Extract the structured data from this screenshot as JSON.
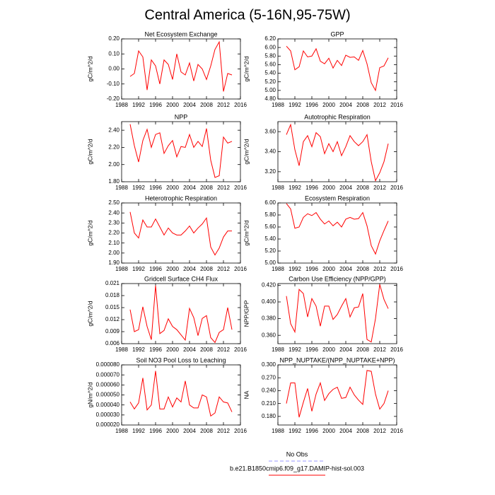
{
  "title": "Central America (5-16N,95-75W)",
  "legend": [
    {
      "name": "No Obs",
      "color": "#9999ff",
      "dash": true
    },
    {
      "name": "b.e21.B1850cmip6.f09_g17.DAMIP-hist-sol.003",
      "color": "#ff0000",
      "dash": false
    }
  ],
  "chart_data": [
    {
      "type": "line",
      "title": "Net Ecosystem Exchange",
      "ylabel": "gC/m^2/d",
      "color": "#ff0000",
      "x": [
        1990,
        1991,
        1992,
        1993,
        1994,
        1995,
        1996,
        1997,
        1998,
        1999,
        2000,
        2001,
        2002,
        2003,
        2004,
        2005,
        2006,
        2007,
        2008,
        2009,
        2010,
        2011,
        2012,
        2013,
        2014
      ],
      "values": [
        -0.05,
        -0.03,
        0.12,
        0.08,
        -0.14,
        0.06,
        0.02,
        -0.1,
        0.06,
        0.03,
        -0.07,
        0.1,
        -0.02,
        -0.04,
        0.04,
        -0.08,
        0.03,
        0.0,
        -0.07,
        0.02,
        0.13,
        0.18,
        -0.15,
        -0.03,
        -0.04
      ],
      "xlim": [
        1988,
        2016
      ],
      "xticks": [
        1988,
        1992,
        1996,
        2000,
        2004,
        2008,
        2012,
        2016
      ],
      "ylim": [
        -0.2,
        0.2
      ],
      "yticks": [
        {
          "value": -0.2,
          "label": "-0.20"
        },
        {
          "value": -0.1,
          "label": "-0.10"
        },
        {
          "value": 0,
          "label": "0.00"
        },
        {
          "value": 0.1,
          "label": "0.10"
        },
        {
          "value": 0.2,
          "label": "0.20"
        }
      ]
    },
    {
      "type": "line",
      "title": "GPP",
      "ylabel": "gC/m^2/d",
      "color": "#ff0000",
      "x": [
        1990,
        1991,
        1992,
        1993,
        1994,
        1995,
        1996,
        1997,
        1998,
        1999,
        2000,
        2001,
        2002,
        2003,
        2004,
        2005,
        2006,
        2007,
        2008,
        2009,
        2010,
        2011,
        2012,
        2013,
        2014
      ],
      "values": [
        6.03,
        5.92,
        5.48,
        5.55,
        5.92,
        5.78,
        5.8,
        5.97,
        5.68,
        5.62,
        5.75,
        5.52,
        5.7,
        5.58,
        5.82,
        5.77,
        5.78,
        5.7,
        5.93,
        5.62,
        5.18,
        5.0,
        5.53,
        5.57,
        5.76
      ],
      "xlim": [
        1988,
        2016
      ],
      "xticks": [
        1988,
        1992,
        1996,
        2000,
        2004,
        2008,
        2012,
        2016
      ],
      "ylim": [
        4.8,
        6.2
      ],
      "yticks": [
        {
          "value": 4.8,
          "label": "4.80"
        },
        {
          "value": 5.0,
          "label": "5.00"
        },
        {
          "value": 5.2,
          "label": "5.20"
        },
        {
          "value": 5.4,
          "label": "5.40"
        },
        {
          "value": 5.6,
          "label": "5.60"
        },
        {
          "value": 5.8,
          "label": "5.80"
        },
        {
          "value": 6.0,
          "label": "6.00"
        },
        {
          "value": 6.2,
          "label": "6.20"
        }
      ]
    },
    {
      "type": "line",
      "title": "NPP",
      "ylabel": "gC/m^2/d",
      "color": "#ff0000",
      "x": [
        1990,
        1991,
        1992,
        1993,
        1994,
        1995,
        1996,
        1997,
        1998,
        1999,
        2000,
        2001,
        2002,
        2003,
        2004,
        2005,
        2006,
        2007,
        2008,
        2009,
        2010,
        2011,
        2012,
        2013,
        2014
      ],
      "values": [
        2.47,
        2.22,
        2.03,
        2.28,
        2.41,
        2.2,
        2.35,
        2.37,
        2.13,
        2.22,
        2.28,
        2.09,
        2.21,
        2.2,
        2.35,
        2.2,
        2.27,
        2.21,
        2.42,
        2.05,
        1.85,
        1.87,
        2.32,
        2.25,
        2.27
      ],
      "xlim": [
        1988,
        2016
      ],
      "xticks": [
        1988,
        1992,
        1996,
        2000,
        2004,
        2008,
        2012,
        2016
      ],
      "ylim": [
        1.8,
        2.5
      ],
      "yticks": [
        {
          "value": 1.8,
          "label": "1.80"
        },
        {
          "value": 2.0,
          "label": "2.00"
        },
        {
          "value": 2.2,
          "label": "2.20"
        },
        {
          "value": 2.4,
          "label": "2.40"
        }
      ]
    },
    {
      "type": "line",
      "title": "Autotrophic Respiration",
      "ylabel": "gC/m^2/d",
      "color": "#ff0000",
      "x": [
        1990,
        1991,
        1992,
        1993,
        1994,
        1995,
        1996,
        1997,
        1998,
        1999,
        2000,
        2001,
        2002,
        2003,
        2004,
        2005,
        2006,
        2007,
        2008,
        2009,
        2010,
        2011,
        2012,
        2013,
        2014
      ],
      "values": [
        3.57,
        3.67,
        3.42,
        3.26,
        3.5,
        3.56,
        3.45,
        3.59,
        3.55,
        3.38,
        3.48,
        3.4,
        3.5,
        3.36,
        3.45,
        3.56,
        3.5,
        3.46,
        3.5,
        3.57,
        3.3,
        3.11,
        3.19,
        3.3,
        3.48
      ],
      "xlim": [
        1988,
        2016
      ],
      "xticks": [
        1988,
        1992,
        1996,
        2000,
        2004,
        2008,
        2012,
        2016
      ],
      "ylim": [
        3.1,
        3.7
      ],
      "yticks": [
        {
          "value": 3.2,
          "label": "3.20"
        },
        {
          "value": 3.4,
          "label": "3.40"
        },
        {
          "value": 3.6,
          "label": "3.60"
        }
      ]
    },
    {
      "type": "line",
      "title": "Heterotrophic Respiration",
      "ylabel": "gC/m^2/d",
      "color": "#ff0000",
      "x": [
        1990,
        1991,
        1992,
        1993,
        1994,
        1995,
        1996,
        1997,
        1998,
        1999,
        2000,
        2001,
        2002,
        2003,
        2004,
        2005,
        2006,
        2007,
        2008,
        2009,
        2010,
        2011,
        2012,
        2013,
        2014
      ],
      "values": [
        2.41,
        2.2,
        2.15,
        2.33,
        2.26,
        2.26,
        2.34,
        2.26,
        2.18,
        2.25,
        2.2,
        2.18,
        2.18,
        2.22,
        2.27,
        2.2,
        2.25,
        2.29,
        2.35,
        2.06,
        1.98,
        2.05,
        2.16,
        2.22,
        2.22
      ],
      "xlim": [
        1988,
        2016
      ],
      "xticks": [
        1988,
        1992,
        1996,
        2000,
        2004,
        2008,
        2012,
        2016
      ],
      "ylim": [
        1.9,
        2.5
      ],
      "yticks": [
        {
          "value": 1.9,
          "label": "1.90"
        },
        {
          "value": 2.0,
          "label": "2.00"
        },
        {
          "value": 2.1,
          "label": "2.10"
        },
        {
          "value": 2.2,
          "label": "2.20"
        },
        {
          "value": 2.3,
          "label": "2.30"
        },
        {
          "value": 2.4,
          "label": "2.40"
        },
        {
          "value": 2.5,
          "label": "2.50"
        }
      ]
    },
    {
      "type": "line",
      "title": "Ecosystem Respiration",
      "ylabel": "gC/m^2/d",
      "color": "#ff0000",
      "x": [
        1990,
        1991,
        1992,
        1993,
        1994,
        1995,
        1996,
        1997,
        1998,
        1999,
        2000,
        2001,
        2002,
        2003,
        2004,
        2005,
        2006,
        2007,
        2008,
        2009,
        2010,
        2011,
        2012,
        2013,
        2014
      ],
      "values": [
        5.99,
        5.9,
        5.58,
        5.6,
        5.76,
        5.82,
        5.79,
        5.84,
        5.73,
        5.65,
        5.7,
        5.62,
        5.68,
        5.6,
        5.73,
        5.76,
        5.73,
        5.74,
        5.84,
        5.62,
        5.29,
        5.15,
        5.37,
        5.54,
        5.7
      ],
      "xlim": [
        1988,
        2016
      ],
      "xticks": [
        1988,
        1992,
        1996,
        2000,
        2004,
        2008,
        2012,
        2016
      ],
      "ylim": [
        5.0,
        6.0
      ],
      "yticks": [
        {
          "value": 5.0,
          "label": "5.00"
        },
        {
          "value": 5.2,
          "label": "5.20"
        },
        {
          "value": 5.4,
          "label": "5.40"
        },
        {
          "value": 5.6,
          "label": "5.60"
        },
        {
          "value": 5.8,
          "label": "5.80"
        },
        {
          "value": 6.0,
          "label": "6.00"
        }
      ]
    },
    {
      "type": "line",
      "title": "Gridcell Surface CH4 Flux",
      "ylabel": "gC/m^2/d",
      "color": "#ff0000",
      "x": [
        1990,
        1991,
        1992,
        1993,
        1994,
        1995,
        1996,
        1997,
        1998,
        1999,
        2000,
        2001,
        2002,
        2003,
        2004,
        2005,
        2006,
        2007,
        2008,
        2009,
        2010,
        2011,
        2012,
        2013,
        2014
      ],
      "values": [
        0.0145,
        0.009,
        0.0095,
        0.0152,
        0.0103,
        0.007,
        0.0205,
        0.0085,
        0.0093,
        0.0122,
        0.0103,
        0.0095,
        0.0082,
        0.0069,
        0.0148,
        0.0125,
        0.008,
        0.0123,
        0.013,
        0.0075,
        0.0063,
        0.0088,
        0.0095,
        0.015,
        0.0095
      ],
      "xlim": [
        1988,
        2016
      ],
      "xticks": [
        1988,
        1992,
        1996,
        2000,
        2004,
        2008,
        2012,
        2016
      ],
      "ylim": [
        0.006,
        0.021
      ],
      "yticks": [
        0.006,
        0.009,
        0.012,
        0.015,
        0.018,
        0.021
      ]
    },
    {
      "type": "line",
      "title": "Carbon Use Efficiency (NPP/GPP)",
      "ylabel": "NPP/GPP",
      "color": "#ff0000",
      "x": [
        1990,
        1991,
        1992,
        1993,
        1994,
        1995,
        1996,
        1997,
        1998,
        1999,
        2000,
        2001,
        2002,
        2003,
        2004,
        2005,
        2006,
        2007,
        2008,
        2009,
        2010,
        2011,
        2012,
        2013,
        2014
      ],
      "values": [
        0.407,
        0.374,
        0.364,
        0.415,
        0.41,
        0.382,
        0.404,
        0.395,
        0.371,
        0.395,
        0.395,
        0.379,
        0.385,
        0.395,
        0.404,
        0.382,
        0.393,
        0.394,
        0.41,
        0.355,
        0.352,
        0.38,
        0.421,
        0.403,
        0.392
      ],
      "xlim": [
        1988,
        2016
      ],
      "xticks": [
        1988,
        1992,
        1996,
        2000,
        2004,
        2008,
        2012,
        2016
      ],
      "ylim": [
        0.35,
        0.422
      ],
      "yticks": [
        {
          "value": 0.36,
          "label": "0.360"
        },
        {
          "value": 0.38,
          "label": "0.380"
        },
        {
          "value": 0.4,
          "label": "0.400"
        },
        {
          "value": 0.42,
          "label": "0.420"
        }
      ]
    },
    {
      "type": "line",
      "title": "Soil NO3 Pool Loss to Leaching",
      "ylabel": "gN/m^2/d",
      "color": "#ff0000",
      "x": [
        1990,
        1991,
        1992,
        1993,
        1994,
        1995,
        1996,
        1997,
        1998,
        1999,
        2000,
        2001,
        2002,
        2003,
        2004,
        2005,
        2006,
        2007,
        2008,
        2009,
        2010,
        2011,
        2012,
        2013,
        2014
      ],
      "values": [
        4.3e-05,
        3.6e-05,
        4.2e-05,
        6.7e-05,
        3.5e-05,
        4e-05,
        7.4e-05,
        3.6e-05,
        3.6e-05,
        4.8e-05,
        3.8e-05,
        4.7e-05,
        4.3e-05,
        6.4e-05,
        4e-05,
        3.7e-05,
        3.7e-05,
        5e-05,
        4.8e-05,
        2.9e-05,
        3.2e-05,
        4.8e-05,
        4.3e-05,
        4.2e-05,
        3.3e-05
      ],
      "xlim": [
        1988,
        2016
      ],
      "xticks": [
        1988,
        1992,
        1996,
        2000,
        2004,
        2008,
        2012,
        2016
      ],
      "ylim": [
        2e-05,
        8e-05
      ],
      "yticks": [
        {
          "value": 2e-05,
          "label": "0.000020"
        },
        {
          "value": 3e-05,
          "label": "0.000030"
        },
        {
          "value": 4e-05,
          "label": "0.000040"
        },
        {
          "value": 5e-05,
          "label": "0.000050"
        },
        {
          "value": 6e-05,
          "label": "0.000060"
        },
        {
          "value": 7e-05,
          "label": "0.000070"
        },
        {
          "value": 8e-05,
          "label": "0.000080"
        }
      ]
    },
    {
      "type": "line",
      "title": "NPP_NUPTAKE/(NPP_NUPTAKE+NPP)",
      "ylabel": "NA",
      "color": "#ff0000",
      "x": [
        1990,
        1991,
        1992,
        1993,
        1994,
        1995,
        1996,
        1997,
        1998,
        1999,
        2000,
        2001,
        2002,
        2003,
        2004,
        2005,
        2006,
        2007,
        2008,
        2009,
        2010,
        2011,
        2012,
        2013,
        2014
      ],
      "values": [
        0.21,
        0.258,
        0.258,
        0.178,
        0.213,
        0.245,
        0.192,
        0.232,
        0.258,
        0.217,
        0.233,
        0.243,
        0.248,
        0.222,
        0.224,
        0.248,
        0.23,
        0.218,
        0.208,
        0.287,
        0.285,
        0.232,
        0.197,
        0.21,
        0.24
      ],
      "xlim": [
        1988,
        2016
      ],
      "xticks": [
        1988,
        1992,
        1996,
        2000,
        2004,
        2008,
        2012,
        2016
      ],
      "ylim": [
        0.16,
        0.3
      ],
      "yticks": [
        {
          "value": 0.18,
          "label": "0.180"
        },
        {
          "value": 0.21,
          "label": "0.210"
        },
        {
          "value": 0.24,
          "label": "0.240"
        },
        {
          "value": 0.27,
          "label": "0.270"
        },
        {
          "value": 0.3,
          "label": "0.300"
        }
      ]
    }
  ]
}
